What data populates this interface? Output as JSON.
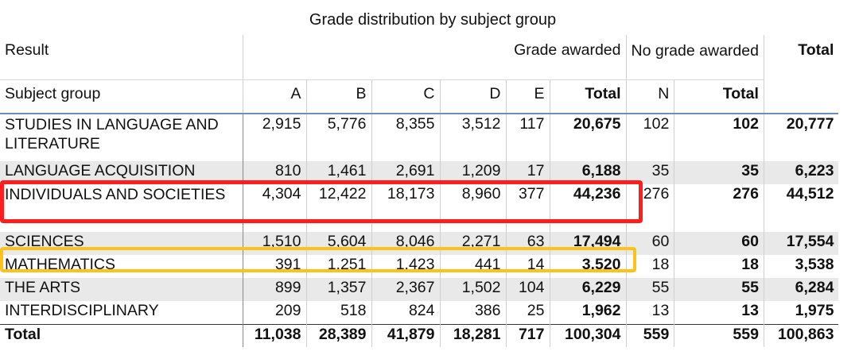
{
  "chart_data": {
    "type": "table",
    "title": "Grade distribution by subject group",
    "header": {
      "result_label": "Result",
      "grade_awarded_label": "Grade awarded",
      "no_grade_label": "No grade awarded",
      "overall_total_label": "Total",
      "row_header_label": "Subject group",
      "columns": [
        "A",
        "B",
        "C",
        "D",
        "E",
        "Total",
        "N",
        "Total"
      ]
    },
    "rows": [
      {
        "label": "STUDIES IN LANGUAGE AND LITERATURE",
        "cells": [
          "2,915",
          "5,776",
          "8,355",
          "3,512",
          "117",
          "20,675",
          "102",
          "102",
          "20,777"
        ]
      },
      {
        "label": "LANGUAGE ACQUISITION",
        "cells": [
          "810",
          "1,461",
          "2,691",
          "1,209",
          "17",
          "6,188",
          "35",
          "35",
          "6,223"
        ]
      },
      {
        "label": "INDIVIDUALS AND SOCIETIES",
        "cells": [
          "4,304",
          "12,422",
          "18,173",
          "8,960",
          "377",
          "44,236",
          "276",
          "276",
          "44,512"
        ]
      },
      {
        "label": "SCIENCES",
        "cells": [
          "1,510",
          "5,604",
          "8,046",
          "2,271",
          "63",
          "17,494",
          "60",
          "60",
          "17,554"
        ]
      },
      {
        "label": "MATHEMATICS",
        "cells": [
          "391",
          "1,251",
          "1,423",
          "441",
          "14",
          "3,520",
          "18",
          "18",
          "3,538"
        ]
      },
      {
        "label": "THE ARTS",
        "cells": [
          "899",
          "1,357",
          "2,367",
          "1,502",
          "104",
          "6,229",
          "55",
          "55",
          "6,284"
        ]
      },
      {
        "label": "INTERDISCIPLINARY",
        "cells": [
          "209",
          "518",
          "824",
          "386",
          "25",
          "1,962",
          "13",
          "13",
          "1,975"
        ]
      }
    ],
    "total_row": {
      "label": "Total",
      "cells": [
        "11,038",
        "28,389",
        "41,879",
        "18,281",
        "717",
        "100,304",
        "559",
        "559",
        "100,863"
      ]
    },
    "highlights": [
      {
        "row": "INDIVIDUALS AND SOCIETIES",
        "color": "#ff1e1e"
      },
      {
        "row": "MATHEMATICS",
        "color": "#ffc21a"
      }
    ]
  }
}
